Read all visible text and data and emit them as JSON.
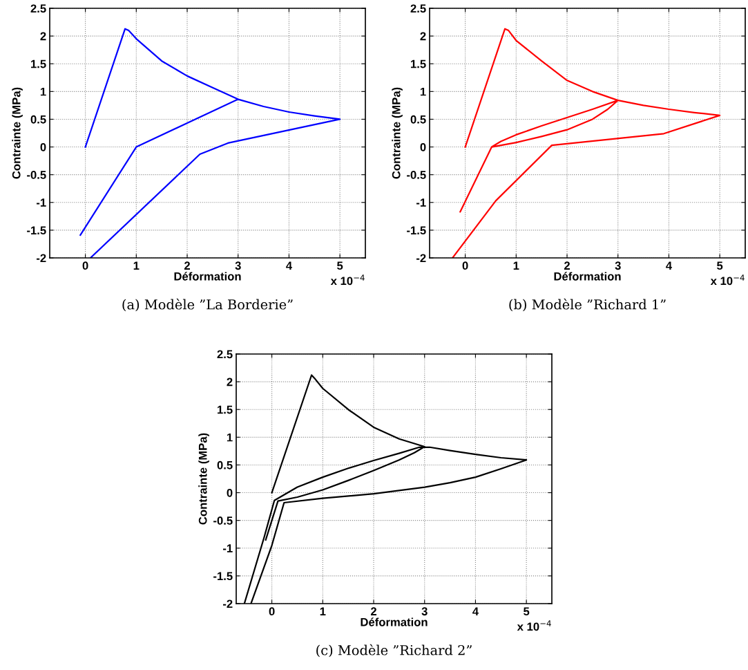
{
  "chart_data": [
    {
      "type": "line",
      "title": "(a) Modèle ”La Borderie”",
      "xlabel": "Déformation",
      "ylabel": "Contrainte (MPa)",
      "annotations": [
        "x 10$^{−4}$"
      ],
      "xlim": [
        -0.7,
        5.5
      ],
      "ylim": [
        -2,
        2.5
      ],
      "xticks": [
        0,
        1,
        2,
        3,
        4,
        5
      ],
      "yticks": [
        -2,
        -1.5,
        -1,
        -0.5,
        0,
        0.5,
        1,
        1.5,
        2,
        2.5
      ],
      "grid": true,
      "series": [
        {
          "color": "#0000ff",
          "x": [
            0,
            0.78,
            0.85,
            1,
            1.5,
            2,
            2.5,
            3,
            2,
            1,
            -0.1,
            1,
            2,
            3,
            3.5,
            4,
            4.5,
            5,
            2.8,
            2.25,
            0.1
          ],
          "values": [
            0,
            2.13,
            2.1,
            1.95,
            1.55,
            1.28,
            1.07,
            0.86,
            0.43,
            0,
            -1.59,
            0,
            0.43,
            0.86,
            0.73,
            0.63,
            0.56,
            0.5,
            0.07,
            -0.13,
            -2.0
          ]
        }
      ]
    },
    {
      "type": "line",
      "title": "(b) Modèle ”Richard 1”",
      "xlabel": "Déformation",
      "ylabel": "Contrainte (MPa)",
      "annotations": [
        "x 10$^{−4}$"
      ],
      "xlim": [
        -0.7,
        5.5
      ],
      "ylim": [
        -2,
        2.5
      ],
      "xticks": [
        0,
        1,
        2,
        3,
        4,
        5
      ],
      "yticks": [
        -2,
        -1.5,
        -1,
        -0.5,
        0,
        0.5,
        1,
        1.5,
        2,
        2.5
      ],
      "grid": true,
      "series": [
        {
          "color": "#ff0000",
          "x": [
            0,
            0.78,
            0.85,
            1,
            1.5,
            2,
            2.5,
            3,
            2.8,
            2.5,
            2,
            1.5,
            1,
            0.52,
            -0.1,
            0.52,
            0.7,
            1,
            1.5,
            2,
            2.5,
            3,
            3.5,
            4,
            4.5,
            5,
            3.9,
            1.7,
            0.6,
            -0.25
          ],
          "values": [
            0,
            2.13,
            2.1,
            1.92,
            1.55,
            1.2,
            1.0,
            0.84,
            0.68,
            0.5,
            0.31,
            0.19,
            0.08,
            0,
            -1.17,
            0,
            0.1,
            0.22,
            0.38,
            0.53,
            0.68,
            0.84,
            0.75,
            0.68,
            0.62,
            0.57,
            0.24,
            0.03,
            -0.97,
            -2.0
          ]
        }
      ]
    },
    {
      "type": "line",
      "title": "(c) Modèle ”Richard 2”",
      "xlabel": "Déformation",
      "ylabel": "Contrainte (MPa)",
      "annotations": [
        "x 10$^{−4}$"
      ],
      "xlim": [
        -0.7,
        5.5
      ],
      "ylim": [
        -2,
        2.5
      ],
      "xticks": [
        0,
        1,
        2,
        3,
        4,
        5
      ],
      "yticks": [
        -2,
        -1.5,
        -1,
        -0.5,
        0,
        0.5,
        1,
        1.5,
        2,
        2.5
      ],
      "grid": true,
      "series": [
        {
          "color": "#000000",
          "x": [
            0,
            0.78,
            0.85,
            1,
            1.5,
            2,
            2.5,
            3,
            2.8,
            2.5,
            2,
            1.5,
            1,
            0.5,
            0.12,
            -0.12,
            null,
            -0.54,
            -0.15,
            0.05,
            0.5,
            1,
            1.5,
            2,
            2.5,
            2.9,
            3.1,
            3.5,
            4,
            4.5,
            5,
            4.5,
            4,
            3.5,
            3,
            2,
            1,
            0.24,
            0,
            -0.41
          ],
          "values": [
            0,
            2.12,
            2.05,
            1.88,
            1.5,
            1.18,
            0.97,
            0.83,
            0.72,
            0.59,
            0.4,
            0.22,
            0.05,
            -0.08,
            -0.15,
            -0.85,
            null,
            -2.0,
            -0.8,
            -0.14,
            0.1,
            0.28,
            0.44,
            0.58,
            0.71,
            0.82,
            0.82,
            0.76,
            0.69,
            0.63,
            0.59,
            0.43,
            0.28,
            0.18,
            0.1,
            -0.02,
            -0.1,
            -0.18,
            -0.95,
            -2.0
          ]
        }
      ]
    }
  ]
}
